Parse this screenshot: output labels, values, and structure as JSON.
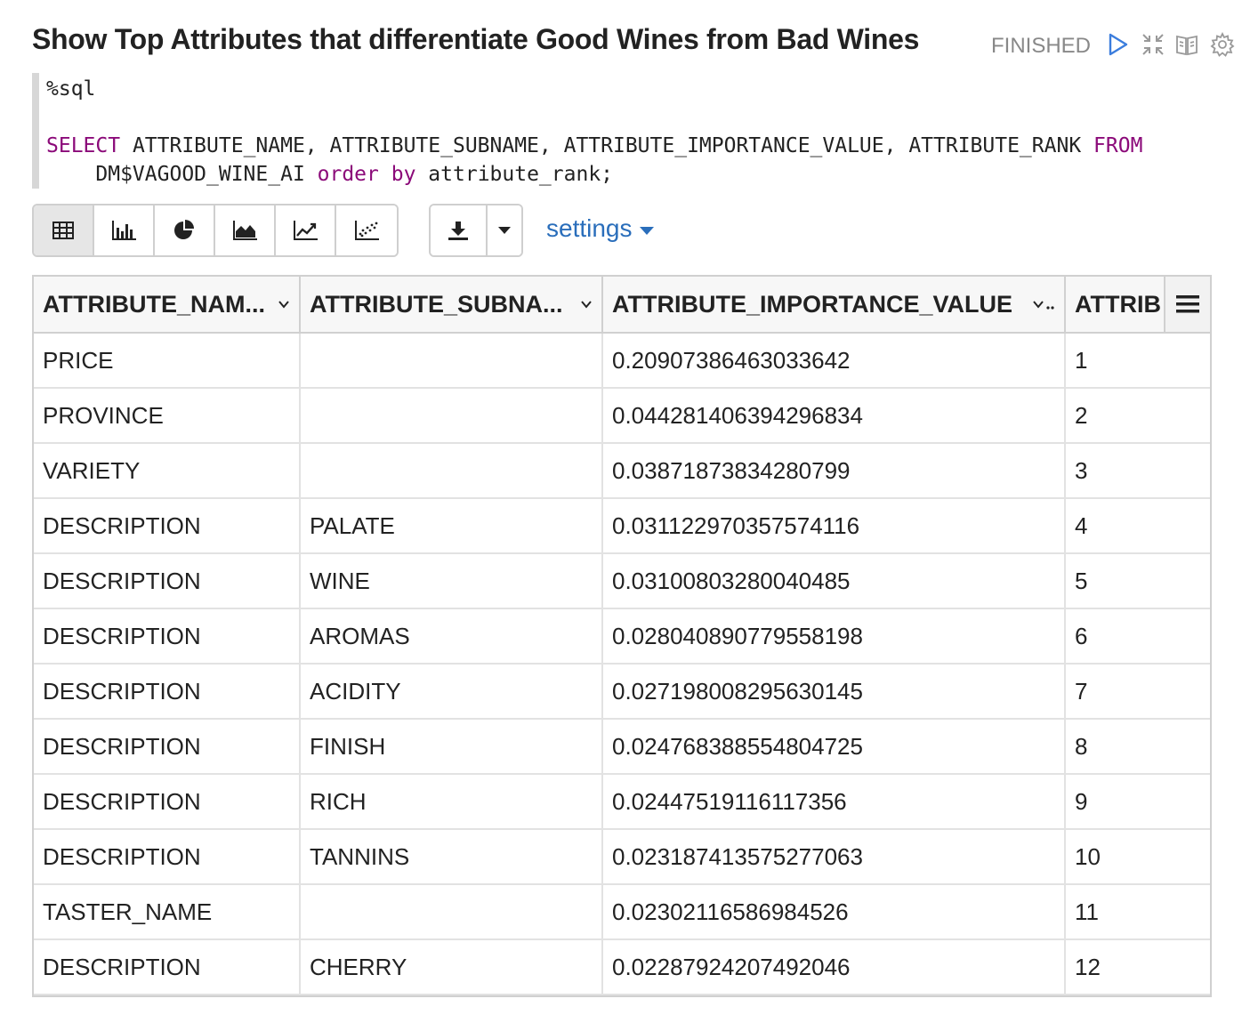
{
  "paragraph": {
    "title": "Show Top Attributes that differentiate Good Wines from Bad Wines",
    "status": "FINISHED"
  },
  "editor": {
    "line1": "%sql",
    "line3_kw1": "SELECT",
    "line3_mid": " ATTRIBUTE_NAME, ATTRIBUTE_SUBNAME, ATTRIBUTE_IMPORTANCE_VALUE, ATTRIBUTE_RANK ",
    "line3_kw2": "FROM",
    "line4_pre": "    DM$VAGOOD_WINE_AI ",
    "line4_kw1": "order",
    "line4_sp": " ",
    "line4_kw2": "by",
    "line4_post": " attribute_rank;"
  },
  "toolbar": {
    "settings_label": "settings",
    "view_buttons": [
      "table-icon",
      "bar-chart-icon",
      "pie-chart-icon",
      "area-chart-icon",
      "line-chart-icon",
      "scatter-chart-icon"
    ],
    "active_view": "table"
  },
  "table": {
    "headers": [
      "ATTRIBUTE_NAM...",
      "ATTRIBUTE_SUBNA...",
      "ATTRIBUTE_IMPORTANCE_VALUE",
      "ATTRIB"
    ],
    "rows": [
      [
        "PRICE",
        "",
        "0.20907386463033642",
        "1"
      ],
      [
        "PROVINCE",
        "",
        "0.044281406394296834",
        "2"
      ],
      [
        "VARIETY",
        "",
        "0.03871873834280799",
        "3"
      ],
      [
        "DESCRIPTION",
        "PALATE",
        "0.031122970357574116",
        "4"
      ],
      [
        "DESCRIPTION",
        "WINE",
        "0.03100803280040485",
        "5"
      ],
      [
        "DESCRIPTION",
        "AROMAS",
        "0.028040890779558198",
        "6"
      ],
      [
        "DESCRIPTION",
        "ACIDITY",
        "0.027198008295630145",
        "7"
      ],
      [
        "DESCRIPTION",
        "FINISH",
        "0.024768388554804725",
        "8"
      ],
      [
        "DESCRIPTION",
        "RICH",
        "0.02447519116117356",
        "9"
      ],
      [
        "DESCRIPTION",
        "TANNINS",
        "0.023187413575277063",
        "10"
      ],
      [
        "TASTER_NAME",
        "",
        "0.02302116586984526",
        "11"
      ],
      [
        "DESCRIPTION",
        "CHERRY",
        "0.02287924207492046",
        "12"
      ]
    ]
  },
  "colors": {
    "keyword": "#8b0a79",
    "link": "#2a6ebb",
    "status": "#888888"
  }
}
